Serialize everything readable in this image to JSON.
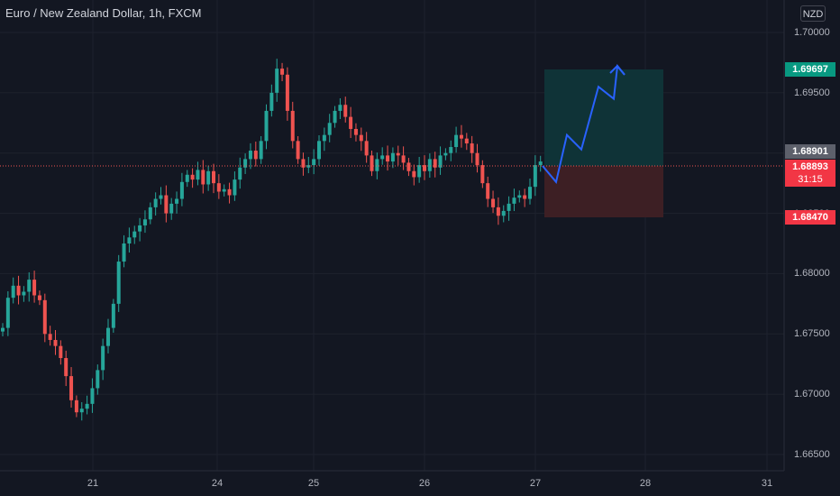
{
  "header": {
    "title": "Euro / New Zealand Dollar, 1h, FXCM",
    "currency": "NZD"
  },
  "colors": {
    "background": "#131722",
    "grid": "#1e222d",
    "up": "#26a69a",
    "down": "#ef5350",
    "axis_text": "#b2b5be",
    "target_zone": "#0f3337",
    "stop_zone": "#3d1f24",
    "projection": "#2962ff",
    "target_label": "#089981",
    "stop_label": "#f23645",
    "entry_label": "#434651"
  },
  "price_labels": {
    "target": {
      "value": "1.69697"
    },
    "entry": {
      "value": "1.68901"
    },
    "current": {
      "value": "1.68893",
      "countdown": "31:15"
    },
    "stop": {
      "value": "1.68470"
    }
  },
  "chart_data": {
    "type": "candlestick",
    "symbol": "EURNZD",
    "interval": "1h",
    "y_axis": {
      "ticks": [
        "1.70000",
        "1.69500",
        "1.69000",
        "1.68500",
        "1.68000",
        "1.67500",
        "1.67000",
        "1.66500"
      ],
      "range": [
        1.664,
        1.7015
      ]
    },
    "x_axis": {
      "ticks": [
        "21",
        "24",
        "25",
        "26",
        "27",
        "28",
        "31"
      ]
    },
    "close_series": [
      1.6755,
      1.678,
      1.679,
      1.6782,
      1.6785,
      1.6795,
      1.6782,
      1.6778,
      1.675,
      1.6745,
      1.674,
      1.673,
      1.6715,
      1.6695,
      1.6685,
      1.6688,
      1.6692,
      1.6705,
      1.672,
      1.674,
      1.6755,
      1.6775,
      1.681,
      1.6825,
      1.683,
      1.6835,
      1.684,
      1.6845,
      1.6855,
      1.6862,
      1.6865,
      1.685,
      1.6858,
      1.6862,
      1.6876,
      1.6882,
      1.6878,
      1.6886,
      1.6874,
      1.6885,
      1.6875,
      1.6868,
      1.687,
      1.6865,
      1.6878,
      1.6888,
      1.6895,
      1.6902,
      1.6895,
      1.691,
      1.6935,
      1.695,
      1.697,
      1.6965,
      1.6935,
      1.691,
      1.6895,
      1.6888,
      1.689,
      1.6895,
      1.691,
      1.6915,
      1.6925,
      1.6935,
      1.694,
      1.693,
      1.692,
      1.6915,
      1.691,
      1.6898,
      1.6885,
      1.6895,
      1.6898,
      1.6893,
      1.69,
      1.6898,
      1.6892,
      1.6885,
      1.688,
      1.689,
      1.6885,
      1.6895,
      1.6888,
      1.6898,
      1.69,
      1.6905,
      1.6915,
      1.6912,
      1.6908,
      1.69,
      1.689,
      1.6875,
      1.6862,
      1.6855,
      1.6848,
      1.6852,
      1.6858,
      1.6863,
      1.6865,
      1.6862,
      1.6872,
      1.689,
      1.6893
    ],
    "trade_setup": {
      "entry": 1.68901,
      "target": 1.69697,
      "stop": 1.6847
    },
    "projection_path": [
      1.68893,
      1.6876,
      1.6915,
      1.6903,
      1.6955,
      1.6945,
      1.6972,
      1.6965
    ],
    "current_price": 1.68893
  }
}
